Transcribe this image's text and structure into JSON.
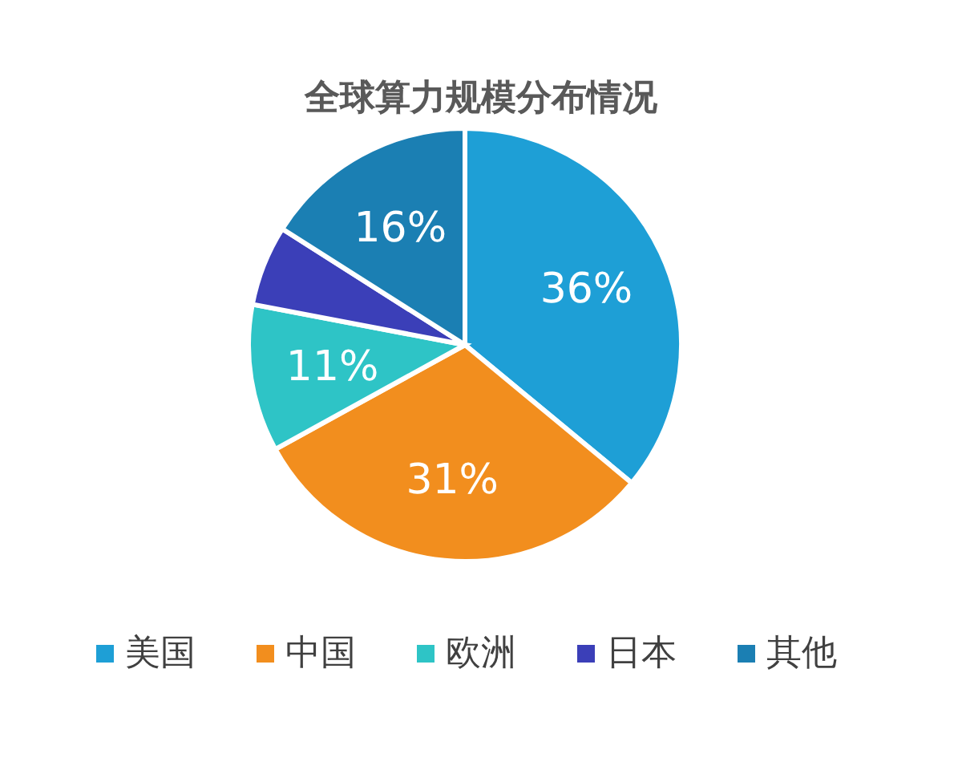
{
  "chart_data": {
    "type": "pie",
    "title": "全球算力规模分布情况",
    "categories": [
      "美国",
      "中国",
      "欧洲",
      "日本",
      "其他"
    ],
    "values": [
      36,
      31,
      11,
      6,
      16
    ],
    "value_labels": [
      "36%",
      "31%",
      "11%",
      null,
      "16%"
    ],
    "colors": [
      "#1e9fd6",
      "#f28e1e",
      "#2ec4c6",
      "#3b3fb8",
      "#1b7fb3"
    ],
    "legend": "bottom"
  }
}
